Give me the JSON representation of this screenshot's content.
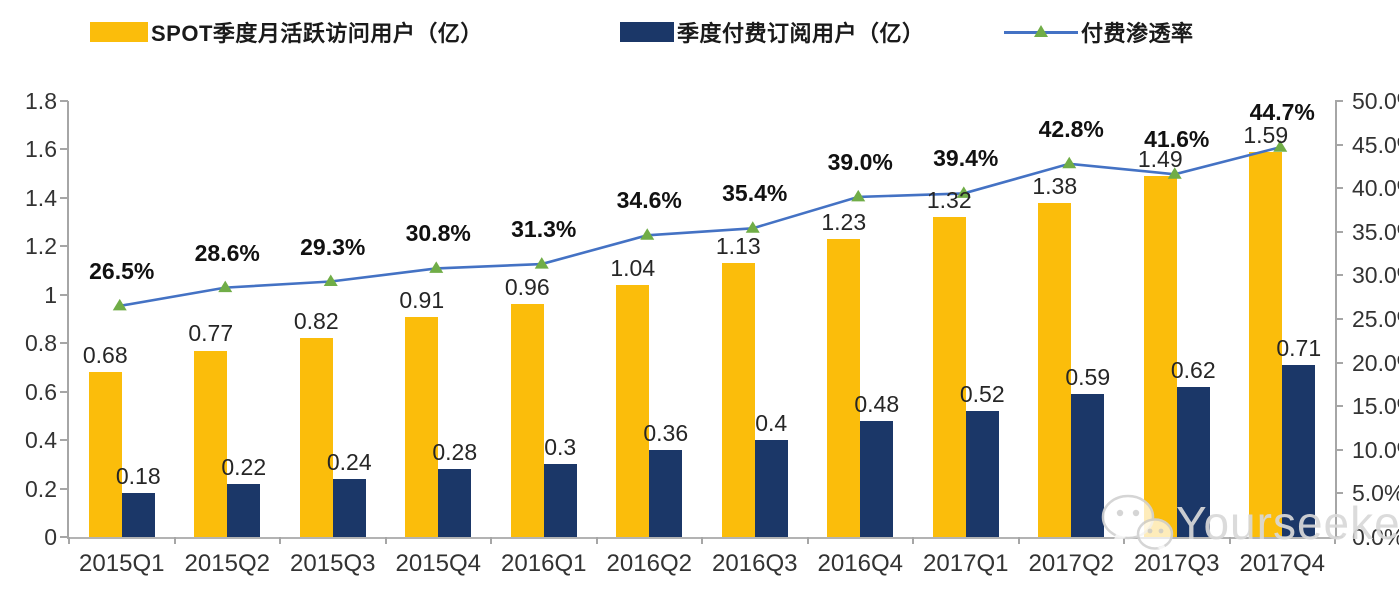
{
  "chart_data": {
    "type": "bar",
    "subtype": "grouped-bar-with-line-combo",
    "categories": [
      "2015Q1",
      "2015Q2",
      "2015Q3",
      "2015Q4",
      "2016Q1",
      "2016Q2",
      "2016Q3",
      "2016Q4",
      "2017Q1",
      "2017Q2",
      "2017Q3",
      "2017Q4"
    ],
    "series": [
      {
        "name": "SPOT季度月活跃访问用户（亿）",
        "type": "bar",
        "axis": "left",
        "color": "#FBBD0B",
        "values": [
          0.68,
          0.77,
          0.82,
          0.91,
          0.96,
          1.04,
          1.13,
          1.23,
          1.32,
          1.38,
          1.49,
          1.59
        ],
        "labels": [
          "0.68",
          "0.77",
          "0.82",
          "0.91",
          "0.96",
          "1.04",
          "1.13",
          "1.23",
          "1.32",
          "1.38",
          "1.49",
          "1.59"
        ]
      },
      {
        "name": "季度付费订阅用户（亿）",
        "type": "bar",
        "axis": "left",
        "color": "#1B3768",
        "values": [
          0.18,
          0.22,
          0.24,
          0.28,
          0.3,
          0.36,
          0.4,
          0.48,
          0.52,
          0.59,
          0.62,
          0.71
        ],
        "labels": [
          "0.18",
          "0.22",
          "0.24",
          "0.28",
          "0.3",
          "0.36",
          "0.4",
          "0.48",
          "0.52",
          "0.59",
          "0.62",
          "0.71"
        ]
      },
      {
        "name": "付费渗透率",
        "type": "line",
        "axis": "right",
        "color": "#4472C4",
        "marker": "triangle",
        "marker_color": "#70AD47",
        "values": [
          26.5,
          28.6,
          29.3,
          30.8,
          31.3,
          34.6,
          35.4,
          39.0,
          39.4,
          42.8,
          41.6,
          44.7
        ],
        "labels": [
          "26.5%",
          "28.6%",
          "29.3%",
          "30.8%",
          "31.3%",
          "34.6%",
          "35.4%",
          "39.0%",
          "39.4%",
          "42.8%",
          "41.6%",
          "44.7%"
        ]
      }
    ],
    "left_axis": {
      "min": 0,
      "max": 1.8,
      "ticks": [
        "0",
        "0.2",
        "0.4",
        "0.6",
        "0.8",
        "1",
        "1.2",
        "1.4",
        "1.6",
        "1.8"
      ]
    },
    "right_axis": {
      "min": 0,
      "max": 50,
      "ticks": [
        "0.0%",
        "5.0%",
        "10.0%",
        "15.0%",
        "20.0%",
        "25.0%",
        "30.0%",
        "35.0%",
        "40.0%",
        "45.0%",
        "50.0%"
      ]
    },
    "legend_position": "top",
    "grid": false
  },
  "watermark": {
    "text": "Yourseeker",
    "icon": "wechat-icon"
  },
  "colors": {
    "bar_mau": "#FBBD0B",
    "bar_subs": "#1B3768",
    "line": "#4472C4",
    "marker": "#70AD47",
    "axis": "#A6A6A6",
    "tick_text": "#333333",
    "watermark": "#D9D9D9"
  }
}
